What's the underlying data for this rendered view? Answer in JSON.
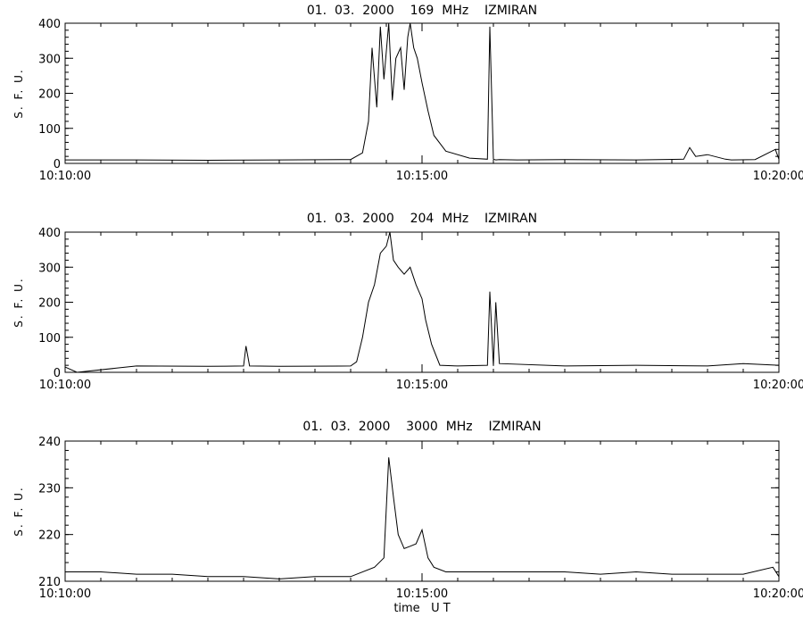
{
  "chart_data": [
    {
      "type": "line",
      "title": "01.  03.  2000    169  MHz    IZMIRAN",
      "xlabel": "",
      "ylabel": "S. F. U.",
      "xlim": [
        "10:10:00",
        "10:20:00"
      ],
      "ylim": [
        0,
        400
      ],
      "x_tick_labels": [
        "10:10:00",
        "10:15:00",
        "10:20:00"
      ],
      "y_tick_labels": [
        "0",
        "100",
        "200",
        "300",
        "400"
      ],
      "grid": false,
      "series": [
        {
          "x": [
            "10:10:00",
            "10:11:00",
            "10:12:00",
            "10:13:00",
            "10:14:00",
            "10:14:10",
            "10:14:15",
            "10:14:18",
            "10:14:22",
            "10:14:25",
            "10:14:28",
            "10:14:32",
            "10:14:35",
            "10:14:38",
            "10:14:42",
            "10:14:45",
            "10:14:48",
            "10:14:50",
            "10:14:53",
            "10:14:56",
            "10:15:00",
            "10:15:05",
            "10:15:10",
            "10:15:20",
            "10:15:40",
            "10:15:55",
            "10:15:57",
            "10:16:00",
            "10:16:02",
            "10:16:05",
            "10:16:20",
            "10:17:00",
            "10:18:00",
            "10:18:40",
            "10:18:45",
            "10:18:50",
            "10:19:00",
            "10:19:15",
            "10:19:20",
            "10:19:40",
            "10:19:57",
            "10:20:00"
          ],
          "y": [
            10,
            10,
            9,
            10,
            11,
            30,
            120,
            330,
            160,
            390,
            240,
            400,
            180,
            300,
            330,
            210,
            360,
            400,
            330,
            300,
            230,
            150,
            80,
            35,
            15,
            12,
            390,
            12,
            10,
            11,
            10,
            11,
            10,
            12,
            45,
            20,
            25,
            12,
            10,
            11,
            40,
            12
          ]
        }
      ]
    },
    {
      "type": "line",
      "title": "01.  03.  2000    204  MHz    IZMIRAN",
      "xlabel": "",
      "ylabel": "S. F. U.",
      "xlim": [
        "10:10:00",
        "10:20:00"
      ],
      "ylim": [
        0,
        400
      ],
      "x_tick_labels": [
        "10:10:00",
        "10:15:00",
        "10:20:00"
      ],
      "y_tick_labels": [
        "0",
        "100",
        "200",
        "300",
        "400"
      ],
      "grid": false,
      "series": [
        {
          "x": [
            "10:10:00",
            "10:10:10",
            "10:11:00",
            "10:12:00",
            "10:12:30",
            "10:12:32",
            "10:12:35",
            "10:13:00",
            "10:14:00",
            "10:14:05",
            "10:14:10",
            "10:14:15",
            "10:14:20",
            "10:14:25",
            "10:14:30",
            "10:14:33",
            "10:14:36",
            "10:14:40",
            "10:14:45",
            "10:14:50",
            "10:14:55",
            "10:15:00",
            "10:15:03",
            "10:15:08",
            "10:15:15",
            "10:15:30",
            "10:15:55",
            "10:15:57",
            "10:16:00",
            "10:16:02",
            "10:16:05",
            "10:17:00",
            "10:18:00",
            "10:19:00",
            "10:19:30",
            "10:20:00"
          ],
          "y": [
            15,
            0,
            18,
            17,
            18,
            75,
            18,
            17,
            18,
            30,
            100,
            200,
            250,
            340,
            360,
            400,
            320,
            300,
            280,
            300,
            250,
            210,
            150,
            80,
            20,
            18,
            20,
            230,
            18,
            200,
            25,
            18,
            20,
            18,
            25,
            20
          ]
        }
      ]
    },
    {
      "type": "line",
      "title": "01.  03.  2000    3000  MHz    IZMIRAN",
      "xlabel": "time   U T",
      "ylabel": "S. F. U.",
      "xlim": [
        "10:10:00",
        "10:20:00"
      ],
      "ylim": [
        210,
        240
      ],
      "x_tick_labels": [
        "10:10:00",
        "10:15:00",
        "10:20:00"
      ],
      "y_tick_labels": [
        "210",
        "220",
        "230",
        "240"
      ],
      "grid": false,
      "series": [
        {
          "x": [
            "10:10:00",
            "10:10:30",
            "10:11:00",
            "10:11:30",
            "10:12:00",
            "10:12:30",
            "10:13:00",
            "10:13:30",
            "10:14:00",
            "10:14:20",
            "10:14:28",
            "10:14:32",
            "10:14:36",
            "10:14:40",
            "10:14:45",
            "10:14:50",
            "10:14:55",
            "10:15:00",
            "10:15:05",
            "10:15:10",
            "10:15:20",
            "10:16:00",
            "10:16:30",
            "10:17:00",
            "10:17:30",
            "10:18:00",
            "10:18:30",
            "10:19:00",
            "10:19:30",
            "10:19:55",
            "10:20:00"
          ],
          "y": [
            212,
            212,
            211.5,
            211.5,
            211,
            211,
            210.5,
            211,
            211,
            213,
            215,
            236.5,
            228,
            220,
            217,
            217.5,
            218,
            221,
            215,
            213,
            212,
            212,
            212,
            212,
            211.5,
            212,
            211.5,
            211.5,
            211.5,
            213,
            211
          ]
        }
      ]
    }
  ]
}
